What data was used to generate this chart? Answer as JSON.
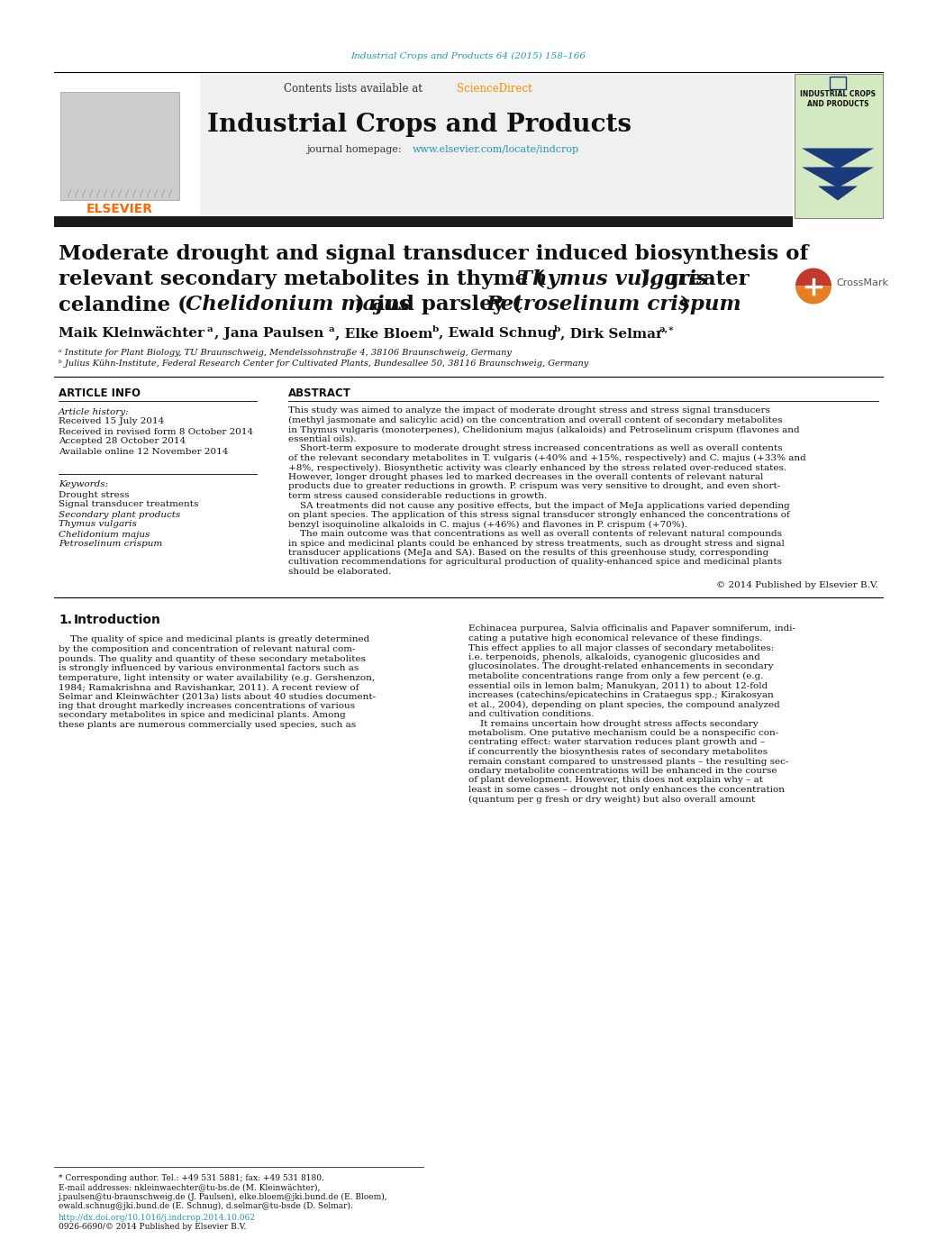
{
  "journal_ref": "Industrial Crops and Products 64 (2015) 158–166",
  "journal_ref_color": "#2196A8",
  "science_direct_color": "#FF8C00",
  "journal_name": "Industrial Crops and Products",
  "journal_homepage_url": "www.elsevier.com/locate/indcrop",
  "journal_homepage_url_color": "#2196A8",
  "affil_a": "ᵃ Institute for Plant Biology, TU Braunschweig, Mendelssohnstraße 4, 38106 Braunschweig, Germany",
  "affil_b": "ᵇ Julius Kühn-Institute, Federal Research Center for Cultivated Plants, Bundesallee 50, 38116 Braunschweig, Germany",
  "article_info_header": "ARTICLE INFO",
  "abstract_header": "ABSTRACT",
  "article_history_header": "Article history:",
  "received": "Received 15 July 2014",
  "revised": "Received in revised form 8 October 2014",
  "accepted": "Accepted 28 October 2014",
  "available": "Available online 12 November 2014",
  "keywords_header": "Keywords:",
  "keywords": [
    "Drought stress",
    "Signal transducer treatments",
    "Secondary plant products",
    "Thymus vulgaris",
    "Chelidonium majus",
    "Petroselinum crispum"
  ],
  "copyright": "© 2014 Published by Elsevier B.V.",
  "footer_note": "* Corresponding author. Tel.: +49 531 5881; fax: +49 531 8180.",
  "footer_email1": "E-mail addresses: nkleinwaechter@tu-bs.de (M. Kleinwächter),",
  "footer_email2": "j.paulsen@tu-braunschweig.de (J. Paulsen), elke.bloem@jki.bund.de (E. Bloem),",
  "footer_email3": "ewald.schnug@jki.bund.de (E. Schnug), d.selmar@tu-bsde (D. Selmar).",
  "footer_doi": "http://dx.doi.org/10.1016/j.indcrop.2014.10.062",
  "footer_issn": "0926-6690/© 2014 Published by Elsevier B.V.",
  "bg_color": "#ffffff",
  "text_color": "#111111",
  "abs_lines": [
    "This study was aimed to analyze the impact of moderate drought stress and stress signal transducers",
    "(methyl jasmonate and salicylic acid) on the concentration and overall content of secondary metabolites",
    "in Thymus vulgaris (monoterpenes), Chelidonium majus (alkaloids) and Petroselinum crispum (flavones and",
    "essential oils).",
    "    Short-term exposure to moderate drought stress increased concentrations as well as overall contents",
    "of the relevant secondary metabolites in T. vulgaris (+40% and +15%, respectively) and C. majus (+33% and",
    "+8%, respectively). Biosynthetic activity was clearly enhanced by the stress related over-reduced states.",
    "However, longer drought phases led to marked decreases in the overall contents of relevant natural",
    "products due to greater reductions in growth. P. crispum was very sensitive to drought, and even short-",
    "term stress caused considerable reductions in growth.",
    "    SA treatments did not cause any positive effects, but the impact of MeJa applications varied depending",
    "on plant species. The application of this stress signal transducer strongly enhanced the concentrations of",
    "benzyl isoquinoline alkaloids in C. majus (+46%) and flavones in P. crispum (+70%).",
    "    The main outcome was that concentrations as well as overall contents of relevant natural compounds",
    "in spice and medicinal plants could be enhanced by stress treatments, such as drought stress and signal",
    "transducer applications (MeJa and SA). Based on the results of this greenhouse study, corresponding",
    "cultivation recommendations for agricultural production of quality-enhanced spice and medicinal plants",
    "should be elaborated."
  ],
  "intro_left_lines": [
    "    The quality of spice and medicinal plants is greatly determined",
    "by the composition and concentration of relevant natural com-",
    "pounds. The quality and quantity of these secondary metabolites",
    "is strongly influenced by various environmental factors such as",
    "temperature, light intensity or water availability (e.g. Gershenzon,",
    "1984; Ramakrishna and Ravishankar, 2011). A recent review of",
    "Selmar and Kleinwächter (2013a) lists about 40 studies document-",
    "ing that drought markedly increases concentrations of various",
    "secondary metabolites in spice and medicinal plants. Among",
    "these plants are numerous commercially used species, such as"
  ],
  "intro_right_lines": [
    "Echinacea purpurea, Salvia officinalis and Papaver somniferum, indi-",
    "cating a putative high economical relevance of these findings.",
    "This effect applies to all major classes of secondary metabolites:",
    "i.e. terpenoids, phenols, alkaloids, cyanogenic glucosides and",
    "glucosinolates. The drought-related enhancements in secondary",
    "metabolite concentrations range from only a few percent (e.g.",
    "essential oils in lemon balm; Manukyan, 2011) to about 12-fold",
    "increases (catechins/epicatechins in Crataegus spp.; Kirakosyan",
    "et al., 2004), depending on plant species, the compound analyzed",
    "and cultivation conditions.",
    "    It remains uncertain how drought stress affects secondary",
    "metabolism. One putative mechanism could be a nonspecific con-",
    "centrating effect: water starvation reduces plant growth and –",
    "if concurrently the biosynthesis rates of secondary metabolites",
    "remain constant compared to unstressed plants – the resulting sec-",
    "ondary metabolite concentrations will be enhanced in the course",
    "of plant development. However, this does not explain why – at",
    "least in some cases – drought not only enhances the concentration",
    "(quantum per g fresh or dry weight) but also overall amount"
  ]
}
